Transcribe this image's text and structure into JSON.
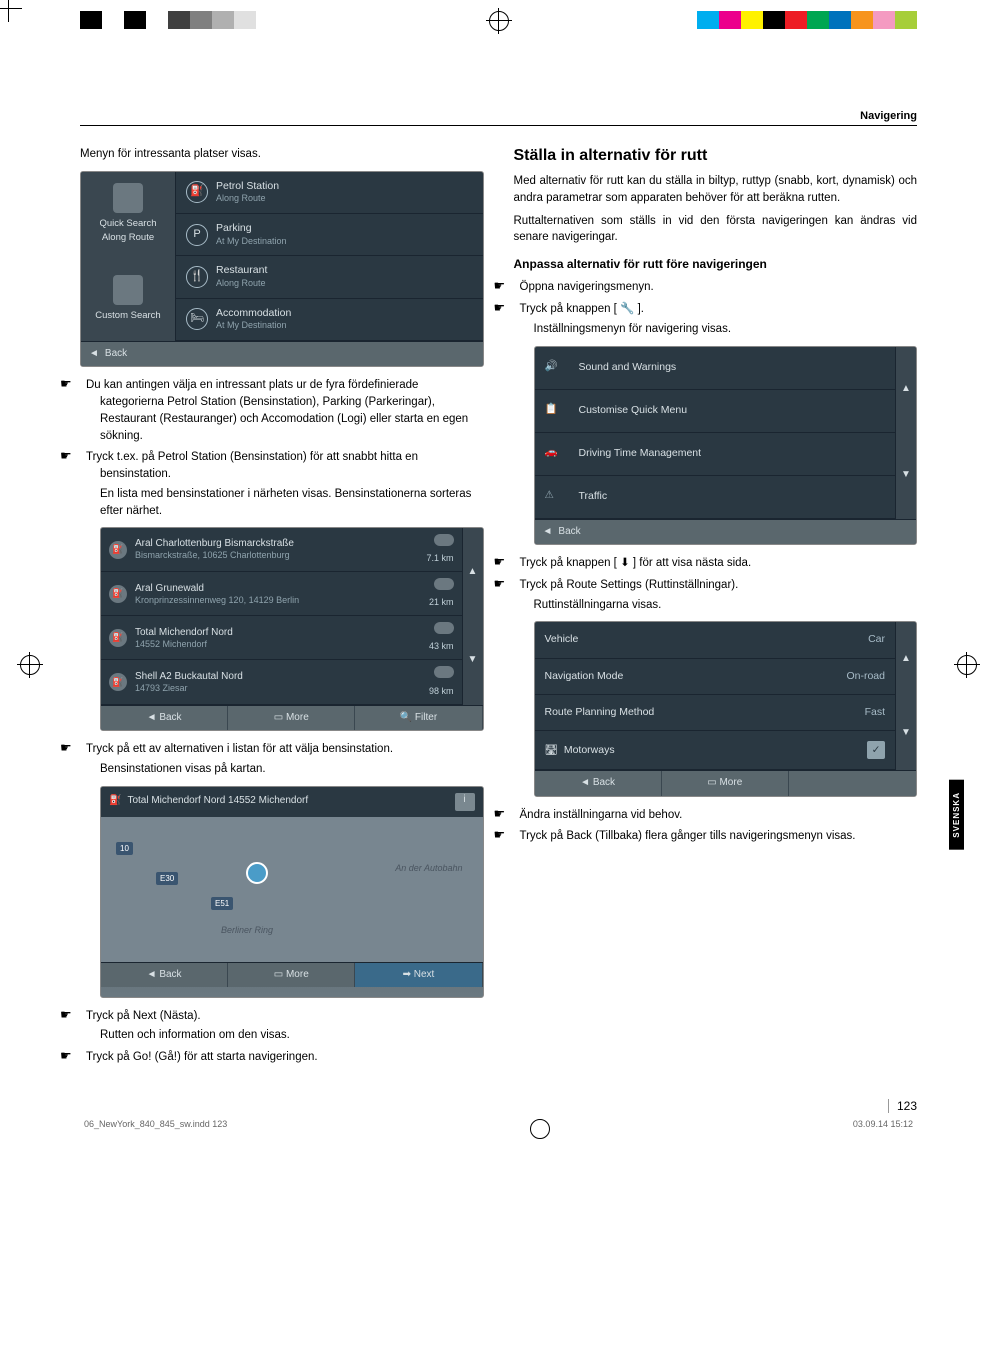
{
  "header": {
    "section": "Navigering"
  },
  "sideTab": "SVENSKA",
  "pageNum": "123",
  "footer": {
    "file": "06_NewYork_840_845_sw.indd   123",
    "date": "03.09.14   15:12"
  },
  "colorBars": {
    "left": [
      "#000000",
      "#ffffff",
      "#000000",
      "#ffffff",
      "#404040",
      "#808080",
      "#b0b0b0",
      "#e0e0e0"
    ],
    "right": [
      "#00aeef",
      "#ec008c",
      "#fff200",
      "#000000",
      "#ed1c24",
      "#00a651",
      "#0072bc",
      "#f7941d",
      "#f49ac1",
      "#a6ce39"
    ]
  },
  "leftCol": {
    "intro": "Menyn för intressanta platser visas.",
    "poiMenu": {
      "leftTop": {
        "label1": "Quick Search",
        "label2": "Along Route"
      },
      "leftBottom": {
        "label": "Custom Search"
      },
      "rows": [
        {
          "icon": "⛽",
          "title": "Petrol Station",
          "sub": "Along Route"
        },
        {
          "icon": "P",
          "title": "Parking",
          "sub": "At My Destination"
        },
        {
          "icon": "🍴",
          "title": "Restaurant",
          "sub": "Along Route"
        },
        {
          "icon": "🛏",
          "title": "Accommodation",
          "sub": "At My Destination"
        }
      ],
      "back": "Back"
    },
    "bullet1": "Du kan antingen välja en intressant plats ur de fyra fördefinierade kategorierna Petrol Station (Bensinstation), Parking (Parkeringar), Restaurant (Restauranger) och Accomodation (Logi) eller starta en egen sökning.",
    "bullet2": "Tryck t.ex. på Petrol Station (Bensinstation) för att snabbt hitta en bensinstation.",
    "sub2": "En lista med bensinstationer i närheten visas. Bensinstationerna sorteras efter närhet.",
    "stationList": [
      {
        "title": "Aral Charlottenburg Bismarckstraße",
        "sub": "Bismarckstraße, 10625 Charlottenburg",
        "dist": "7.1 km"
      },
      {
        "title": "Aral Grunewald",
        "sub": "Kronprinzessinnenweg 120, 14129 Berlin",
        "dist": "21 km"
      },
      {
        "title": "Total Michendorf Nord",
        "sub": "14552 Michendorf",
        "dist": "43 km"
      },
      {
        "title": "Shell A2 Buckautal Nord",
        "sub": "14793 Ziesar",
        "dist": "98 km"
      }
    ],
    "listButtons": {
      "back": "Back",
      "more": "More",
      "filter": "Filter"
    },
    "bullet3": "Tryck på ett av alternativen i listan för att välja bensinstation.",
    "sub3": "Bensinstationen visas på kartan.",
    "mapTitle": "Total Michendorf Nord 14552 Michendorf",
    "mapLabels": {
      "road1": "An der Autobahn",
      "road2": "Berliner Ring",
      "b1": "10",
      "b2": "E30",
      "b3": "E51"
    },
    "mapButtons": {
      "back": "Back",
      "more": "More",
      "next": "Next"
    },
    "bullet4": "Tryck på Next (Nästa).",
    "sub4": "Rutten och information om den visas.",
    "bullet5": "Tryck på Go! (Gå!) för att starta navigeringen."
  },
  "rightCol": {
    "h2": "Ställa in alternativ för rutt",
    "p1": "Med alternativ för rutt kan du ställa in biltyp, ruttyp (snabb, kort, dynamisk) och andra parametrar som apparaten behöver för att beräkna rutten.",
    "p2": "Ruttalternativen som ställs in vid den första navigeringen kan ändras vid senare navigeringar.",
    "h3": "Anpassa alternativ för rutt före navigeringen",
    "b1": "Öppna navigeringsmenyn.",
    "b2": "Tryck på knappen [ 🔧 ].",
    "sub2": "Inställningsmenyn för navigering visas.",
    "settingsList": [
      {
        "icon": "🔊",
        "label": "Sound and Warnings"
      },
      {
        "icon": "📋",
        "label": "Customise Quick Menu"
      },
      {
        "icon": "🚗",
        "label": "Driving Time Management"
      },
      {
        "icon": "⚠",
        "label": "Traffic"
      }
    ],
    "settingsBack": "Back",
    "b3": "Tryck på knappen [ ⬇ ] för att visa nästa sida.",
    "b4": "Tryck på Route Settings (Ruttinställningar).",
    "sub4": "Ruttinställningarna visas.",
    "routeSettings": [
      {
        "label": "Vehicle",
        "val": "Car"
      },
      {
        "label": "Navigation Mode",
        "val": "On-road"
      },
      {
        "label": "Route Planning Method",
        "val": "Fast"
      },
      {
        "label": "Motorways",
        "val": "✓",
        "checkbox": true,
        "icon": "🛣"
      }
    ],
    "routeButtons": {
      "back": "Back",
      "more": "More"
    },
    "b5": "Ändra inställningarna vid behov.",
    "b6": "Tryck på Back (Tillbaka) flera gånger tills navigeringsmenyn visas."
  }
}
